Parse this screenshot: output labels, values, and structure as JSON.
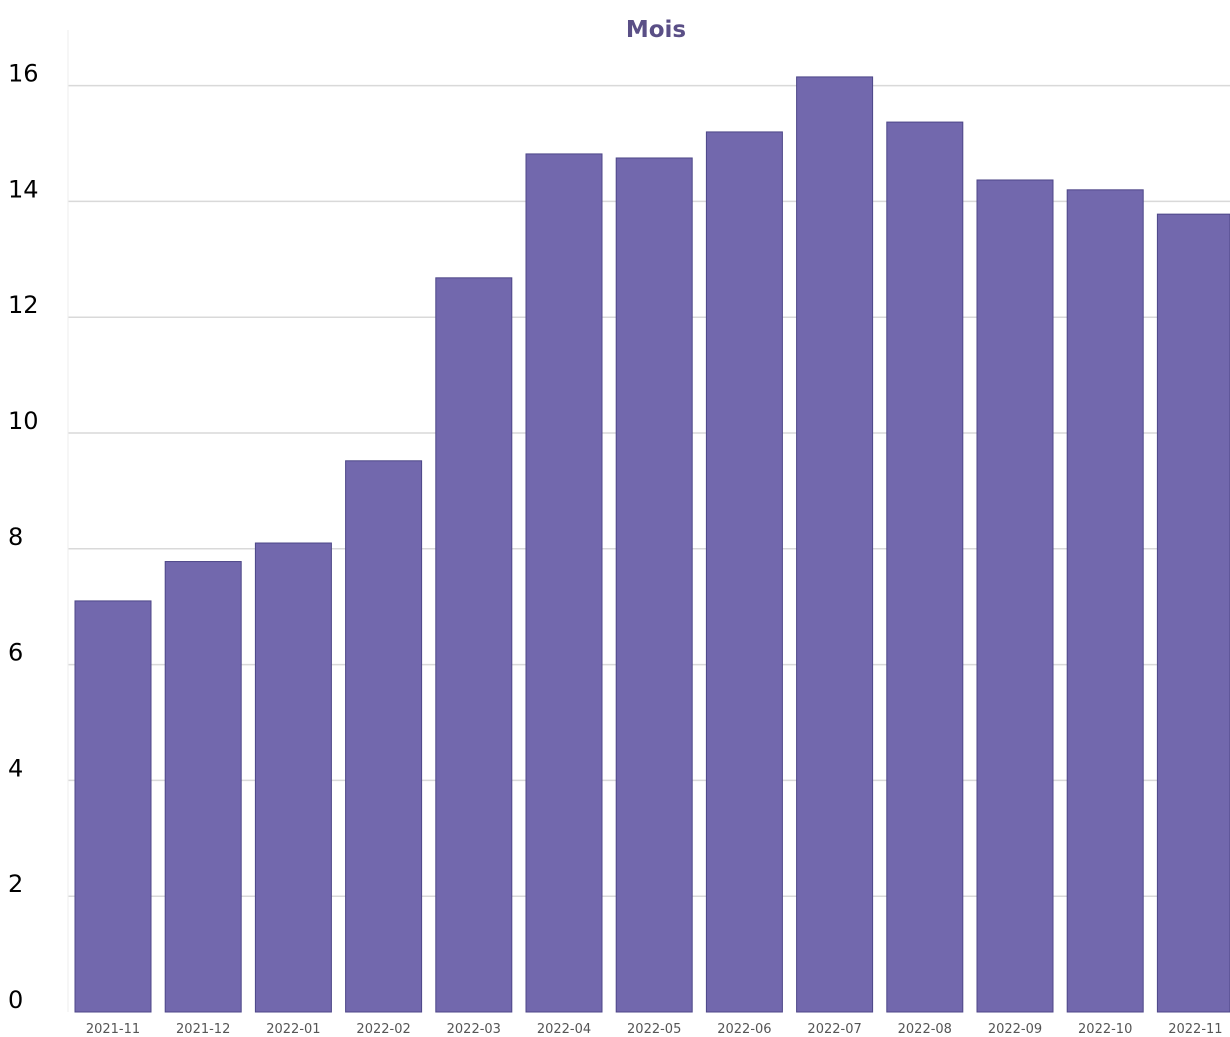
{
  "chart_data": {
    "type": "bar",
    "title": "Mois",
    "xlabel": "",
    "ylabel": "",
    "categories": [
      "2021-11",
      "2021-12",
      "2022-01",
      "2022-02",
      "2022-03",
      "2022-04",
      "2022-05",
      "2022-06",
      "2022-07",
      "2022-08",
      "2022-09",
      "2022-10",
      "2022-11"
    ],
    "values": [
      7.1,
      7.78,
      8.1,
      9.52,
      12.68,
      14.82,
      14.75,
      15.2,
      16.15,
      15.37,
      14.37,
      14.2,
      13.78
    ],
    "ylim": [
      0,
      16.5
    ],
    "yticks": [
      0,
      2,
      4,
      6,
      8,
      10,
      12,
      14,
      16
    ],
    "grid": true,
    "legend": "none"
  },
  "colors": {
    "bar_fill": "#7268ad",
    "bar_stroke": "#4d4688",
    "title": "#5a4f86",
    "grid": "#d9d9d9"
  }
}
